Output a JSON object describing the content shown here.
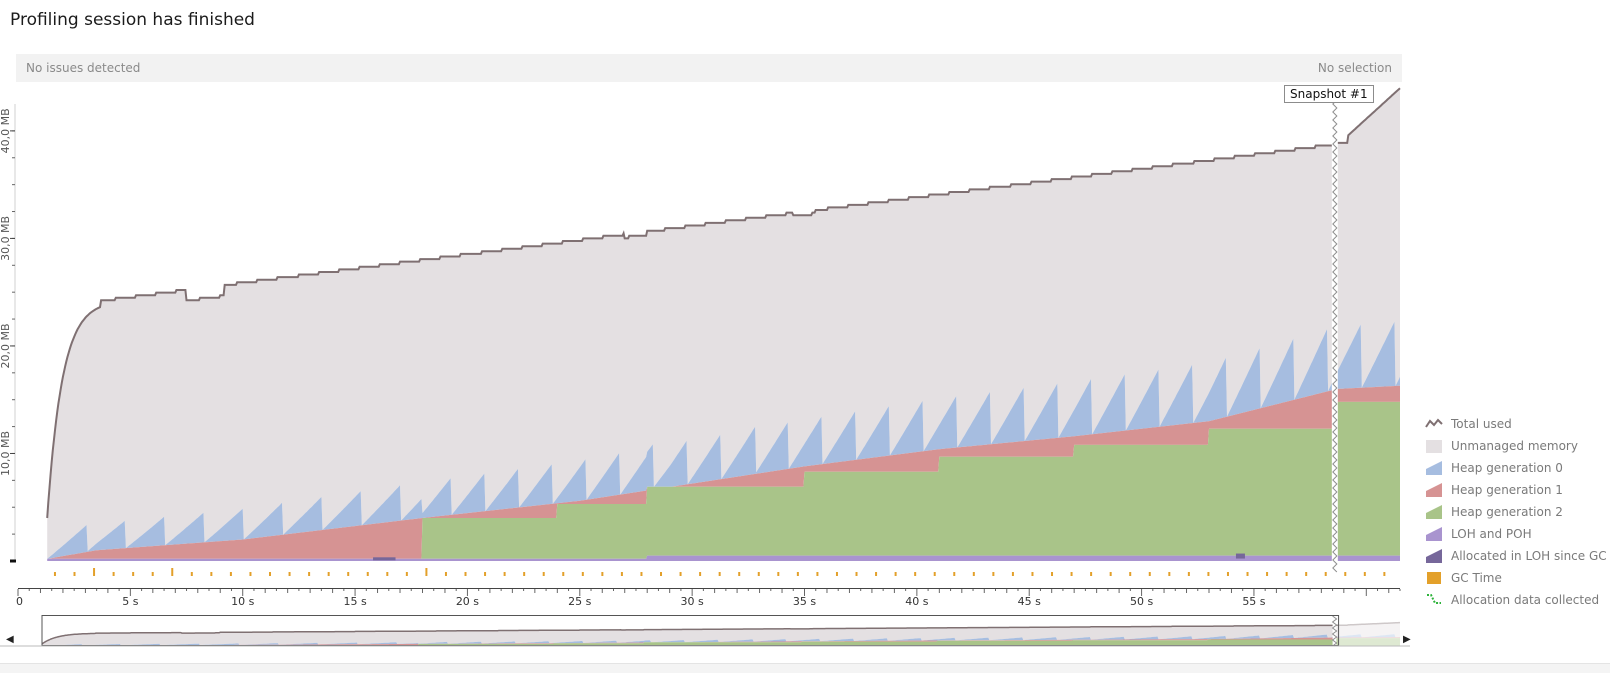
{
  "header": {
    "title": "Profiling session has finished"
  },
  "status": {
    "issues": "No issues detected",
    "selection": "No selection"
  },
  "snapshot": {
    "label": "Snapshot #1",
    "time_s": 58.6
  },
  "y_axis": {
    "ticks": [
      {
        "value": 10,
        "label": "10,0 MB"
      },
      {
        "value": 20,
        "label": "20,0 MB"
      },
      {
        "value": 30,
        "label": "30,0 MB"
      },
      {
        "value": 40,
        "label": "40,0 MB"
      }
    ]
  },
  "x_axis": {
    "ticks": [
      {
        "value": 0,
        "label": "0"
      },
      {
        "value": 5,
        "label": "5 s"
      },
      {
        "value": 10,
        "label": "10 s"
      },
      {
        "value": 15,
        "label": "15 s"
      },
      {
        "value": 20,
        "label": "20 s"
      },
      {
        "value": 25,
        "label": "25 s"
      },
      {
        "value": 30,
        "label": "30 s"
      },
      {
        "value": 35,
        "label": "35 s"
      },
      {
        "value": 40,
        "label": "40 s"
      },
      {
        "value": 45,
        "label": "45 s"
      },
      {
        "value": 50,
        "label": "50 s"
      },
      {
        "value": 55,
        "label": "55 s"
      }
    ]
  },
  "colors": {
    "total": "#7f7072",
    "unmanaged": "#e4e0e2",
    "gen0": "#a6bde0",
    "gen1": "#d69393",
    "gen2": "#a9c489",
    "loh": "#a994cf",
    "loh_alloc": "#76679a",
    "gc": "#e3a02a",
    "alloc_data": "#2db33b"
  },
  "legend": [
    {
      "key": "total",
      "label": "Total used",
      "icon": "total-used-icon"
    },
    {
      "key": "unmanaged",
      "label": "Unmanaged memory",
      "icon": "unmanaged-memory-icon"
    },
    {
      "key": "gen0",
      "label": "Heap generation 0",
      "icon": "heap-gen0-icon"
    },
    {
      "key": "gen1",
      "label": "Heap generation 1",
      "icon": "heap-gen1-icon"
    },
    {
      "key": "gen2",
      "label": "Heap generation 2",
      "icon": "heap-gen2-icon"
    },
    {
      "key": "loh",
      "label": "LOH and POH",
      "icon": "loh-poh-icon"
    },
    {
      "key": "loh_alloc",
      "label": "Allocated in LOH since GC",
      "icon": "loh-allocated-icon"
    },
    {
      "key": "gc",
      "label": "GC Time",
      "icon": "gc-time-icon"
    },
    {
      "key": "alloc_data",
      "label": "Allocation data collected",
      "icon": "allocation-data-icon"
    }
  ]
}
